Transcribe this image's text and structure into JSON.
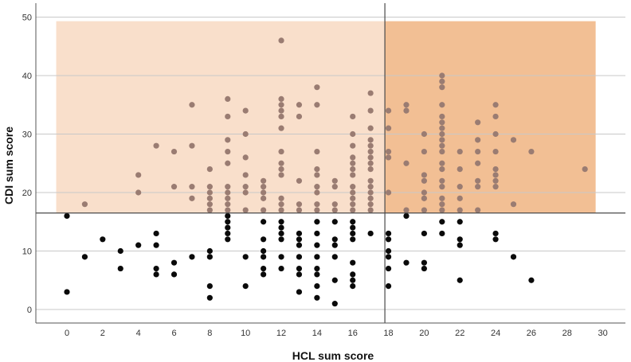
{
  "chart_data": {
    "type": "scatter",
    "title": "",
    "xlabel": "HCL sum score",
    "ylabel": "CDI sum score",
    "xlim": [
      -2,
      31
    ],
    "ylim": [
      -3,
      53
    ],
    "xticks": [
      0,
      2,
      4,
      6,
      8,
      10,
      12,
      14,
      16,
      18,
      20,
      22,
      24,
      26,
      28,
      30
    ],
    "yticks": [
      0,
      10,
      20,
      30,
      40,
      50
    ],
    "grid": "horizontal",
    "reference_lines": {
      "x": 17.8,
      "y": 16.5
    },
    "regions": [
      {
        "name": "light",
        "x": [
          -0.6,
          17.8
        ],
        "y": [
          16.5,
          49.3
        ],
        "color": "#f9dfcb"
      },
      {
        "name": "dark",
        "x": [
          17.8,
          29.6
        ],
        "y": [
          16.5,
          49.3
        ],
        "color": "#f2bf94"
      }
    ],
    "point_colors": {
      "above": "#9a7c72",
      "below": "#0a0a0a"
    },
    "points": [
      [
        0,
        3
      ],
      [
        0,
        16
      ],
      [
        1,
        9
      ],
      [
        1,
        18
      ],
      [
        2,
        12
      ],
      [
        3,
        7
      ],
      [
        3,
        10
      ],
      [
        4,
        11
      ],
      [
        4,
        20
      ],
      [
        4,
        23
      ],
      [
        5,
        6
      ],
      [
        5,
        7
      ],
      [
        5,
        11
      ],
      [
        5,
        13
      ],
      [
        5,
        28
      ],
      [
        6,
        6
      ],
      [
        6,
        8
      ],
      [
        6,
        21
      ],
      [
        6,
        27
      ],
      [
        7,
        9
      ],
      [
        7,
        19
      ],
      [
        7,
        21
      ],
      [
        7,
        28
      ],
      [
        7,
        35
      ],
      [
        8,
        2
      ],
      [
        8,
        4
      ],
      [
        8,
        9
      ],
      [
        8,
        10
      ],
      [
        8,
        17
      ],
      [
        8,
        18
      ],
      [
        8,
        19
      ],
      [
        8,
        20
      ],
      [
        8,
        21
      ],
      [
        8,
        24
      ],
      [
        9,
        12
      ],
      [
        9,
        13
      ],
      [
        9,
        14
      ],
      [
        9,
        15
      ],
      [
        9,
        16
      ],
      [
        9,
        17
      ],
      [
        9,
        18
      ],
      [
        9,
        19
      ],
      [
        9,
        20
      ],
      [
        9,
        21
      ],
      [
        9,
        25
      ],
      [
        9,
        27
      ],
      [
        9,
        29
      ],
      [
        9,
        33
      ],
      [
        9,
        36
      ],
      [
        10,
        4
      ],
      [
        10,
        9
      ],
      [
        10,
        17
      ],
      [
        10,
        20
      ],
      [
        10,
        21
      ],
      [
        10,
        23
      ],
      [
        10,
        26
      ],
      [
        10,
        30
      ],
      [
        10,
        34
      ],
      [
        11,
        6
      ],
      [
        11,
        7
      ],
      [
        11,
        9
      ],
      [
        11,
        10
      ],
      [
        11,
        12
      ],
      [
        11,
        15
      ],
      [
        11,
        17
      ],
      [
        11,
        19
      ],
      [
        11,
        20
      ],
      [
        11,
        21
      ],
      [
        11,
        22
      ],
      [
        12,
        7
      ],
      [
        12,
        9
      ],
      [
        12,
        12
      ],
      [
        12,
        13
      ],
      [
        12,
        14
      ],
      [
        12,
        15
      ],
      [
        12,
        17
      ],
      [
        12,
        18
      ],
      [
        12,
        19
      ],
      [
        12,
        23
      ],
      [
        12,
        24
      ],
      [
        12,
        25
      ],
      [
        12,
        27
      ],
      [
        12,
        31
      ],
      [
        12,
        33
      ],
      [
        12,
        34
      ],
      [
        12,
        35
      ],
      [
        12,
        36
      ],
      [
        12,
        46
      ],
      [
        13,
        3
      ],
      [
        13,
        6
      ],
      [
        13,
        7
      ],
      [
        13,
        9
      ],
      [
        13,
        11
      ],
      [
        13,
        12
      ],
      [
        13,
        13
      ],
      [
        13,
        17
      ],
      [
        13,
        18
      ],
      [
        13,
        22
      ],
      [
        13,
        33
      ],
      [
        13,
        35
      ],
      [
        14,
        2
      ],
      [
        14,
        4
      ],
      [
        14,
        6
      ],
      [
        14,
        7
      ],
      [
        14,
        9
      ],
      [
        14,
        11
      ],
      [
        14,
        13
      ],
      [
        14,
        15
      ],
      [
        14,
        17
      ],
      [
        14,
        18
      ],
      [
        14,
        20
      ],
      [
        14,
        21
      ],
      [
        14,
        23
      ],
      [
        14,
        24
      ],
      [
        14,
        27
      ],
      [
        14,
        35
      ],
      [
        14,
        38
      ],
      [
        15,
        1
      ],
      [
        15,
        5
      ],
      [
        15,
        9
      ],
      [
        15,
        11
      ],
      [
        15,
        12
      ],
      [
        15,
        15
      ],
      [
        15,
        17
      ],
      [
        15,
        18
      ],
      [
        15,
        21
      ],
      [
        15,
        22
      ],
      [
        16,
        4
      ],
      [
        16,
        5
      ],
      [
        16,
        6
      ],
      [
        16,
        8
      ],
      [
        16,
        12
      ],
      [
        16,
        13
      ],
      [
        16,
        14
      ],
      [
        16,
        15
      ],
      [
        16,
        17
      ],
      [
        16,
        18
      ],
      [
        16,
        19
      ],
      [
        16,
        20
      ],
      [
        16,
        21
      ],
      [
        16,
        23
      ],
      [
        16,
        24
      ],
      [
        16,
        25
      ],
      [
        16,
        26
      ],
      [
        16,
        28
      ],
      [
        16,
        30
      ],
      [
        16,
        33
      ],
      [
        17,
        13
      ],
      [
        17,
        17
      ],
      [
        17,
        18
      ],
      [
        17,
        19
      ],
      [
        17,
        20
      ],
      [
        17,
        21
      ],
      [
        17,
        22
      ],
      [
        17,
        24
      ],
      [
        17,
        25
      ],
      [
        17,
        26
      ],
      [
        17,
        27
      ],
      [
        17,
        28
      ],
      [
        17,
        29
      ],
      [
        17,
        31
      ],
      [
        17,
        34
      ],
      [
        17,
        37
      ],
      [
        18,
        4
      ],
      [
        18,
        7
      ],
      [
        18,
        9
      ],
      [
        18,
        10
      ],
      [
        18,
        12
      ],
      [
        18,
        13
      ],
      [
        18,
        20
      ],
      [
        18,
        26
      ],
      [
        18,
        27
      ],
      [
        18,
        31
      ],
      [
        18,
        34
      ],
      [
        19,
        8
      ],
      [
        19,
        16
      ],
      [
        19,
        17
      ],
      [
        19,
        25
      ],
      [
        19,
        34
      ],
      [
        19,
        35
      ],
      [
        20,
        7
      ],
      [
        20,
        8
      ],
      [
        20,
        13
      ],
      [
        20,
        17
      ],
      [
        20,
        19
      ],
      [
        20,
        20
      ],
      [
        20,
        22
      ],
      [
        20,
        23
      ],
      [
        20,
        27
      ],
      [
        20,
        30
      ],
      [
        21,
        13
      ],
      [
        21,
        15
      ],
      [
        21,
        17
      ],
      [
        21,
        18
      ],
      [
        21,
        19
      ],
      [
        21,
        21
      ],
      [
        21,
        22
      ],
      [
        21,
        24
      ],
      [
        21,
        25
      ],
      [
        21,
        27
      ],
      [
        21,
        28
      ],
      [
        21,
        29
      ],
      [
        21,
        30
      ],
      [
        21,
        31
      ],
      [
        21,
        32
      ],
      [
        21,
        33
      ],
      [
        21,
        35
      ],
      [
        21,
        38
      ],
      [
        21,
        39
      ],
      [
        21,
        40
      ],
      [
        22,
        5
      ],
      [
        22,
        11
      ],
      [
        22,
        12
      ],
      [
        22,
        15
      ],
      [
        22,
        17
      ],
      [
        22,
        19
      ],
      [
        22,
        21
      ],
      [
        22,
        24
      ],
      [
        22,
        27
      ],
      [
        23,
        17
      ],
      [
        23,
        21
      ],
      [
        23,
        22
      ],
      [
        23,
        25
      ],
      [
        23,
        27
      ],
      [
        23,
        29
      ],
      [
        23,
        32
      ],
      [
        24,
        12
      ],
      [
        24,
        13
      ],
      [
        24,
        21
      ],
      [
        24,
        22
      ],
      [
        24,
        23
      ],
      [
        24,
        24
      ],
      [
        24,
        27
      ],
      [
        24,
        30
      ],
      [
        24,
        33
      ],
      [
        24,
        35
      ],
      [
        25,
        9
      ],
      [
        25,
        18
      ],
      [
        25,
        29
      ],
      [
        26,
        5
      ],
      [
        26,
        27
      ],
      [
        29,
        24
      ]
    ]
  }
}
